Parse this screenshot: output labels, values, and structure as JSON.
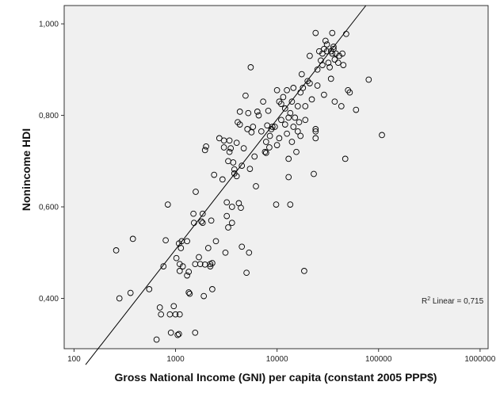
{
  "chart_data": {
    "type": "scatter",
    "xlabel": "Gross National Income (GNI) per capita (constant 2005 PPP$)",
    "ylabel": "Nonincome HDI",
    "x_scale": "log",
    "xlim": [
      80,
      1200000
    ],
    "ylim": [
      0.29,
      1.04
    ],
    "xticks": [
      100,
      1000,
      10000,
      100000,
      1000000
    ],
    "xtick_labels": [
      "100",
      "1000",
      "10000",
      "100000",
      "1000000"
    ],
    "yticks": [
      0.4,
      0.6,
      0.8,
      1.0
    ],
    "ytick_labels": [
      "0,400",
      "0,600",
      "0,800",
      "1,000"
    ],
    "grid": false,
    "background": "#f0f0f0",
    "marker": "open-circle",
    "fit_line": {
      "type": "linear-in-log-x",
      "points": [
        [
          130,
          0.255
        ],
        [
          75000,
          1.04
        ]
      ],
      "r2_label_prefix": "R",
      "r2_label_sup": "2",
      "r2_label_rest": " Linear = 0,715"
    },
    "points": [
      [
        260,
        0.505
      ],
      [
        280,
        0.4
      ],
      [
        360,
        0.412
      ],
      [
        380,
        0.53
      ],
      [
        550,
        0.42
      ],
      [
        650,
        0.31
      ],
      [
        700,
        0.38
      ],
      [
        720,
        0.365
      ],
      [
        760,
        0.47
      ],
      [
        800,
        0.527
      ],
      [
        840,
        0.605
      ],
      [
        880,
        0.365
      ],
      [
        900,
        0.325
      ],
      [
        960,
        0.383
      ],
      [
        1000,
        0.365
      ],
      [
        1020,
        0.488
      ],
      [
        1050,
        0.32
      ],
      [
        1080,
        0.322
      ],
      [
        1080,
        0.52
      ],
      [
        1100,
        0.365
      ],
      [
        1100,
        0.46
      ],
      [
        1100,
        0.475
      ],
      [
        1130,
        0.51
      ],
      [
        1150,
        0.525
      ],
      [
        1180,
        0.47
      ],
      [
        1300,
        0.45
      ],
      [
        1300,
        0.525
      ],
      [
        1350,
        0.458
      ],
      [
        1350,
        0.413
      ],
      [
        1380,
        0.41
      ],
      [
        1500,
        0.585
      ],
      [
        1520,
        0.565
      ],
      [
        1560,
        0.475
      ],
      [
        1560,
        0.325
      ],
      [
        1580,
        0.633
      ],
      [
        1700,
        0.49
      ],
      [
        1750,
        0.475
      ],
      [
        1800,
        0.568
      ],
      [
        1850,
        0.565
      ],
      [
        1850,
        0.585
      ],
      [
        1900,
        0.405
      ],
      [
        1950,
        0.474
      ],
      [
        1950,
        0.724
      ],
      [
        2000,
        0.732
      ],
      [
        2100,
        0.51
      ],
      [
        2200,
        0.475
      ],
      [
        2200,
        0.47
      ],
      [
        2250,
        0.57
      ],
      [
        2300,
        0.477
      ],
      [
        2300,
        0.42
      ],
      [
        2400,
        0.67
      ],
      [
        2500,
        0.525
      ],
      [
        2700,
        0.75
      ],
      [
        2900,
        0.66
      ],
      [
        3000,
        0.73
      ],
      [
        3000,
        0.745
      ],
      [
        3100,
        0.5
      ],
      [
        3200,
        0.58
      ],
      [
        3200,
        0.61
      ],
      [
        3300,
        0.555
      ],
      [
        3300,
        0.7
      ],
      [
        3400,
        0.745
      ],
      [
        3400,
        0.72
      ],
      [
        3500,
        0.728
      ],
      [
        3600,
        0.6
      ],
      [
        3600,
        0.565
      ],
      [
        3700,
        0.697
      ],
      [
        3800,
        0.682
      ],
      [
        3800,
        0.673
      ],
      [
        4000,
        0.667
      ],
      [
        4000,
        0.74
      ],
      [
        4100,
        0.785
      ],
      [
        4200,
        0.608
      ],
      [
        4300,
        0.78
      ],
      [
        4300,
        0.808
      ],
      [
        4400,
        0.598
      ],
      [
        4500,
        0.69
      ],
      [
        4500,
        0.513
      ],
      [
        4700,
        0.728
      ],
      [
        4900,
        0.843
      ],
      [
        5000,
        0.456
      ],
      [
        5100,
        0.77
      ],
      [
        5200,
        0.805
      ],
      [
        5300,
        0.5
      ],
      [
        5400,
        0.683
      ],
      [
        5500,
        0.905
      ],
      [
        5600,
        0.763
      ],
      [
        5800,
        0.775
      ],
      [
        6000,
        0.71
      ],
      [
        6200,
        0.645
      ],
      [
        6400,
        0.808
      ],
      [
        6600,
        0.8
      ],
      [
        7000,
        0.765
      ],
      [
        7300,
        0.83
      ],
      [
        7600,
        0.72
      ],
      [
        7800,
        0.742
      ],
      [
        7800,
        0.718
      ],
      [
        8000,
        0.778
      ],
      [
        8200,
        0.81
      ],
      [
        8400,
        0.73
      ],
      [
        8500,
        0.755
      ],
      [
        8800,
        0.77
      ],
      [
        9000,
        0.775
      ],
      [
        9500,
        0.775
      ],
      [
        9800,
        0.605
      ],
      [
        10000,
        0.855
      ],
      [
        10000,
        0.735
      ],
      [
        10500,
        0.75
      ],
      [
        10500,
        0.83
      ],
      [
        11000,
        0.825
      ],
      [
        11000,
        0.79
      ],
      [
        11500,
        0.84
      ],
      [
        12000,
        0.78
      ],
      [
        12000,
        0.815
      ],
      [
        12500,
        0.855
      ],
      [
        12500,
        0.76
      ],
      [
        13000,
        0.665
      ],
      [
        13000,
        0.705
      ],
      [
        13000,
        0.795
      ],
      [
        13500,
        0.805
      ],
      [
        13500,
        0.605
      ],
      [
        14000,
        0.742
      ],
      [
        14000,
        0.83
      ],
      [
        14500,
        0.775
      ],
      [
        14500,
        0.86
      ],
      [
        15000,
        0.795
      ],
      [
        15500,
        0.72
      ],
      [
        16000,
        0.82
      ],
      [
        16000,
        0.765
      ],
      [
        16500,
        0.785
      ],
      [
        17000,
        0.85
      ],
      [
        17000,
        0.755
      ],
      [
        17500,
        0.89
      ],
      [
        18000,
        0.86
      ],
      [
        18500,
        0.46
      ],
      [
        19000,
        0.82
      ],
      [
        19000,
        0.79
      ],
      [
        20000,
        0.875
      ],
      [
        21000,
        0.87
      ],
      [
        21000,
        0.93
      ],
      [
        22000,
        0.835
      ],
      [
        23000,
        0.672
      ],
      [
        24000,
        0.75
      ],
      [
        24000,
        0.77
      ],
      [
        24000,
        0.765
      ],
      [
        24000,
        0.98
      ],
      [
        25000,
        0.865
      ],
      [
        25000,
        0.9
      ],
      [
        26000,
        0.94
      ],
      [
        27000,
        0.92
      ],
      [
        28000,
        0.91
      ],
      [
        28000,
        0.935
      ],
      [
        29000,
        0.945
      ],
      [
        29000,
        0.845
      ],
      [
        30000,
        0.963
      ],
      [
        31000,
        0.955
      ],
      [
        31000,
        0.94
      ],
      [
        32000,
        0.915
      ],
      [
        33000,
        0.905
      ],
      [
        34000,
        0.94
      ],
      [
        34000,
        0.88
      ],
      [
        35000,
        0.935
      ],
      [
        35000,
        0.98
      ],
      [
        36000,
        0.95
      ],
      [
        36000,
        0.945
      ],
      [
        37000,
        0.83
      ],
      [
        37000,
        0.922
      ],
      [
        38000,
        0.935
      ],
      [
        40000,
        0.915
      ],
      [
        41000,
        0.93
      ],
      [
        43000,
        0.82
      ],
      [
        44000,
        0.935
      ],
      [
        45000,
        0.91
      ],
      [
        47000,
        0.705
      ],
      [
        48000,
        0.978
      ],
      [
        50000,
        0.855
      ],
      [
        52000,
        0.85
      ],
      [
        60000,
        0.812
      ],
      [
        80000,
        0.878
      ],
      [
        108000,
        0.757
      ]
    ]
  }
}
